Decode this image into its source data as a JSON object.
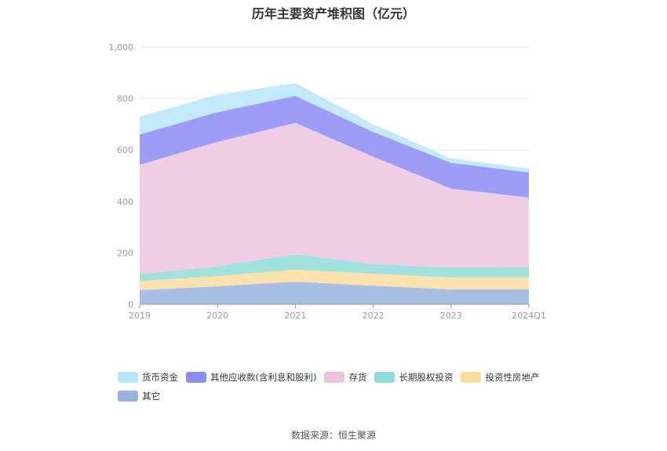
{
  "title": "历年主要资产堆积图（亿元）",
  "source": "数据来源：恒生聚源",
  "chart_data": {
    "type": "area",
    "stacked": true,
    "x": [
      "2019",
      "2020",
      "2021",
      "2022",
      "2023",
      "2024Q1"
    ],
    "ylim": [
      0,
      1000
    ],
    "yticks": [
      0,
      200,
      400,
      600,
      800,
      1000
    ],
    "ytick_labels": [
      "0",
      "200",
      "400",
      "600",
      "800",
      "1,000"
    ],
    "grid": true,
    "legend_position": "bottom",
    "series": [
      {
        "name": "其它",
        "color": "#98b3e0",
        "values": [
          55,
          70,
          88,
          72,
          58,
          58
        ]
      },
      {
        "name": "投资性房地产",
        "color": "#fddca0",
        "values": [
          35,
          40,
          47,
          47,
          47,
          47
        ]
      },
      {
        "name": "长期股权投资",
        "color": "#90dcd8",
        "values": [
          27,
          37,
          60,
          37,
          38,
          40
        ]
      },
      {
        "name": "存货",
        "color": "#ecc4e0",
        "values": [
          425,
          485,
          510,
          418,
          307,
          270
        ]
      },
      {
        "name": "其他应收款(含利息和股利)",
        "color": "#8c8cf5",
        "values": [
          118,
          115,
          105,
          96,
          100,
          98
        ]
      },
      {
        "name": "货币资金",
        "color": "#b8e6fa",
        "values": [
          70,
          68,
          50,
          30,
          17,
          15
        ]
      }
    ],
    "legend_order": [
      "货币资金",
      "其他应收款(含利息和股利)",
      "存货",
      "长期股权投资",
      "投资性房地产",
      "其它"
    ]
  }
}
